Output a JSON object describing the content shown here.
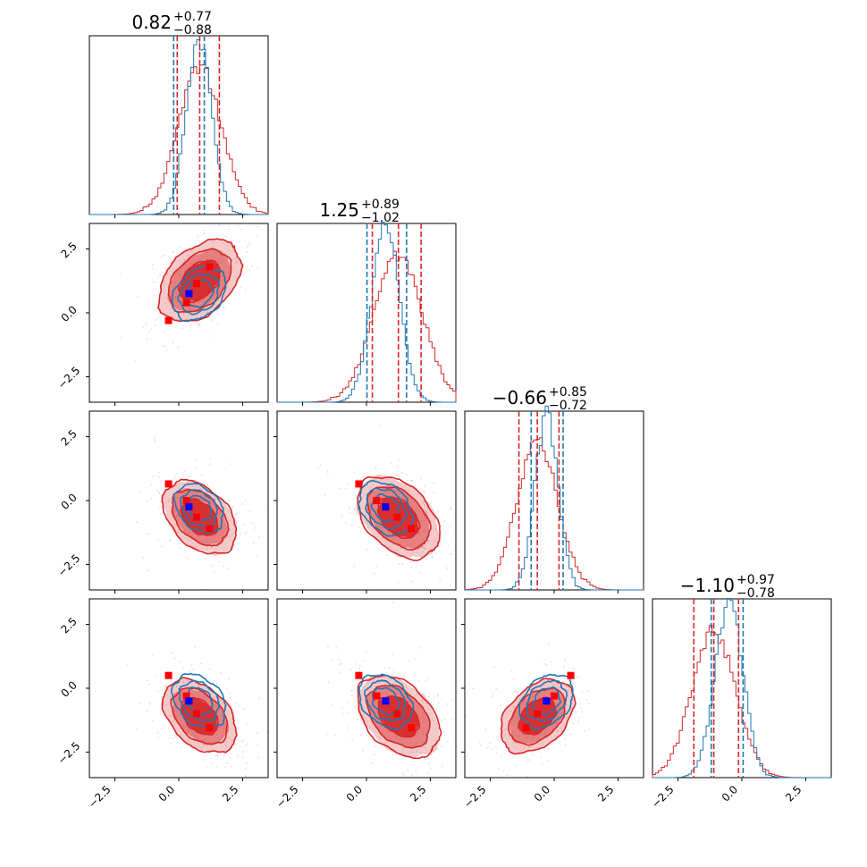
{
  "chart_data": {
    "type": "corner",
    "n_params": 4,
    "range": [
      -3.5,
      3.5
    ],
    "ticks": [
      -2.5,
      0.0,
      2.5
    ],
    "tick_labels": [
      "−2.5",
      "0.0",
      "2.5"
    ],
    "colors": {
      "red": "#d62728",
      "blue": "#1f77b4",
      "marker_blue": "#0000ff",
      "marker_red": "#ff0000"
    },
    "params": [
      {
        "title_value": "0.82",
        "title_plus": "+0.77",
        "title_minus": "−0.88",
        "red": {
          "mean": 0.82,
          "sd": 0.85,
          "quantiles": [
            -0.06,
            0.82,
            1.59
          ]
        },
        "blue": {
          "mean": 0.8,
          "sd": 0.5,
          "quantiles": [
            -0.2,
            1.0
          ]
        }
      },
      {
        "title_value": "1.25",
        "title_plus": "+0.89",
        "title_minus": "−1.02",
        "red": {
          "mean": 1.25,
          "sd": 0.95,
          "quantiles": [
            0.23,
            1.25,
            2.14
          ]
        },
        "blue": {
          "mean": 0.75,
          "sd": 0.55,
          "quantiles": [
            0.02,
            1.57
          ]
        }
      },
      {
        "title_value": "−0.66",
        "title_plus": "+0.85",
        "title_minus": "−0.72",
        "red": {
          "mean": -0.66,
          "sd": 0.8,
          "quantiles": [
            -1.38,
            -0.66,
            0.19
          ]
        },
        "blue": {
          "mean": -0.3,
          "sd": 0.45,
          "quantiles": [
            -0.9,
            0.35
          ]
        }
      },
      {
        "title_value": "−1.10",
        "title_plus": "+0.97",
        "title_minus": "−0.78",
        "red": {
          "mean": -1.1,
          "sd": 0.85,
          "quantiles": [
            -1.88,
            -1.1,
            -0.13
          ]
        },
        "blue": {
          "mean": -0.5,
          "sd": 0.55,
          "quantiles": [
            -1.2,
            0.05
          ]
        }
      }
    ],
    "panels": [
      {
        "row": 1,
        "col": 0,
        "blue_marker": [
          0.4,
          0.75
        ],
        "red_markers": [
          [
            -0.4,
            -0.3
          ],
          [
            0.3,
            0.4
          ],
          [
            0.7,
            1.15
          ],
          [
            1.2,
            1.8
          ]
        ]
      },
      {
        "row": 2,
        "col": 0,
        "blue_marker": [
          0.4,
          -0.25
        ],
        "red_markers": [
          [
            -0.4,
            0.65
          ],
          [
            0.3,
            0.0
          ],
          [
            0.7,
            -0.65
          ],
          [
            1.2,
            -1.1
          ]
        ]
      },
      {
        "row": 2,
        "col": 1,
        "blue_marker": [
          0.75,
          -0.25
        ],
        "red_markers": [
          [
            -0.3,
            0.65
          ],
          [
            0.4,
            0.0
          ],
          [
            1.2,
            -0.65
          ],
          [
            1.75,
            -1.1
          ]
        ]
      },
      {
        "row": 3,
        "col": 0,
        "blue_marker": [
          0.4,
          -0.5
        ],
        "red_markers": [
          [
            -0.4,
            0.5
          ],
          [
            0.3,
            -0.3
          ],
          [
            0.7,
            -1.0
          ],
          [
            1.2,
            -1.55
          ]
        ]
      },
      {
        "row": 3,
        "col": 1,
        "blue_marker": [
          0.75,
          -0.5
        ],
        "red_markers": [
          [
            -0.3,
            0.5
          ],
          [
            0.4,
            -0.3
          ],
          [
            1.2,
            -1.0
          ],
          [
            1.75,
            -1.55
          ]
        ]
      },
      {
        "row": 3,
        "col": 2,
        "blue_marker": [
          -0.3,
          -0.5
        ],
        "red_markers": [
          [
            -1.1,
            -1.55
          ],
          [
            -0.65,
            -1.0
          ],
          [
            0.0,
            -0.3
          ],
          [
            0.65,
            0.5
          ]
        ]
      }
    ]
  }
}
